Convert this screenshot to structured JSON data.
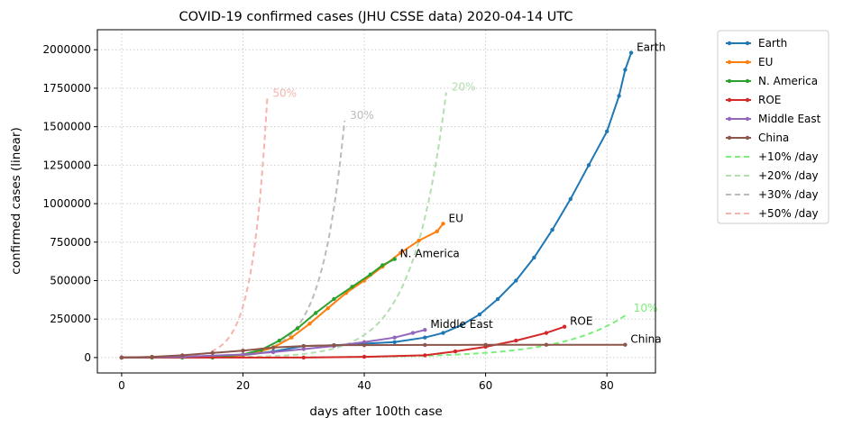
{
  "chart_data": {
    "type": "line",
    "title": "COVID-19 confirmed cases (JHU CSSE data) 2020-04-14 UTC",
    "xlabel": "days after 100th case",
    "ylabel": "confirmed cases (linear)",
    "xlim": [
      -4,
      88
    ],
    "ylim": [
      -100000,
      2130000
    ],
    "x_ticks": [
      0,
      20,
      40,
      60,
      80
    ],
    "y_ticks": [
      0,
      250000,
      500000,
      750000,
      1000000,
      1250000,
      1500000,
      1750000,
      2000000
    ],
    "grid": "dotted",
    "legend_position": "outside-right",
    "series": [
      {
        "name": "Earth",
        "color": "#1f77b4",
        "style": "marker-line",
        "points": [
          [
            0,
            0
          ],
          [
            5,
            1000
          ],
          [
            10,
            2000
          ],
          [
            15,
            5000
          ],
          [
            20,
            15000
          ],
          [
            25,
            40000
          ],
          [
            30,
            75000
          ],
          [
            35,
            80000
          ],
          [
            40,
            90000
          ],
          [
            45,
            100000
          ],
          [
            50,
            130000
          ],
          [
            53,
            160000
          ],
          [
            56,
            210000
          ],
          [
            59,
            280000
          ],
          [
            62,
            380000
          ],
          [
            65,
            500000
          ],
          [
            68,
            650000
          ],
          [
            71,
            830000
          ],
          [
            74,
            1030000
          ],
          [
            77,
            1250000
          ],
          [
            80,
            1470000
          ],
          [
            82,
            1700000
          ],
          [
            83,
            1870000
          ],
          [
            84,
            1980000
          ]
        ],
        "end_label": "Earth"
      },
      {
        "name": "EU",
        "color": "#ff7f0e",
        "style": "marker-line",
        "points": [
          [
            0,
            0
          ],
          [
            5,
            0
          ],
          [
            10,
            0
          ],
          [
            15,
            0
          ],
          [
            20,
            15000
          ],
          [
            22,
            30000
          ],
          [
            25,
            65000
          ],
          [
            28,
            130000
          ],
          [
            31,
            220000
          ],
          [
            34,
            320000
          ],
          [
            37,
            420000
          ],
          [
            40,
            500000
          ],
          [
            43,
            590000
          ],
          [
            46,
            680000
          ],
          [
            49,
            760000
          ],
          [
            52,
            820000
          ],
          [
            53,
            870000
          ]
        ],
        "end_label": "EU"
      },
      {
        "name": "N. America",
        "color": "#2ca02c",
        "style": "marker-line",
        "points": [
          [
            0,
            0
          ],
          [
            5,
            0
          ],
          [
            10,
            0
          ],
          [
            15,
            0
          ],
          [
            20,
            20000
          ],
          [
            23,
            50000
          ],
          [
            26,
            110000
          ],
          [
            29,
            190000
          ],
          [
            32,
            290000
          ],
          [
            35,
            380000
          ],
          [
            38,
            460000
          ],
          [
            41,
            540000
          ],
          [
            43,
            600000
          ],
          [
            45,
            640000
          ]
        ],
        "end_label": "N. America"
      },
      {
        "name": "ROE",
        "color": "#d62728",
        "style": "marker-line",
        "points": [
          [
            0,
            0
          ],
          [
            30,
            0
          ],
          [
            40,
            5000
          ],
          [
            50,
            15000
          ],
          [
            55,
            40000
          ],
          [
            60,
            70000
          ],
          [
            65,
            110000
          ],
          [
            70,
            160000
          ],
          [
            73,
            200000
          ]
        ],
        "end_label": "ROE"
      },
      {
        "name": "Middle East",
        "color": "#9467bd",
        "style": "marker-line",
        "points": [
          [
            0,
            0
          ],
          [
            10,
            5000
          ],
          [
            20,
            20000
          ],
          [
            25,
            35000
          ],
          [
            30,
            55000
          ],
          [
            35,
            75000
          ],
          [
            40,
            100000
          ],
          [
            45,
            130000
          ],
          [
            48,
            160000
          ],
          [
            50,
            180000
          ]
        ],
        "end_label": "Middle East"
      },
      {
        "name": "China",
        "color": "#8c564b",
        "style": "marker-line",
        "points": [
          [
            0,
            0
          ],
          [
            5,
            5000
          ],
          [
            10,
            15000
          ],
          [
            15,
            30000
          ],
          [
            20,
            45000
          ],
          [
            25,
            65000
          ],
          [
            30,
            75000
          ],
          [
            35,
            80000
          ],
          [
            40,
            81000
          ],
          [
            50,
            82000
          ],
          [
            60,
            82500
          ],
          [
            70,
            83000
          ],
          [
            83,
            83000
          ]
        ],
        "end_label": "China"
      },
      {
        "name": "+10% /day",
        "color": "#7af07a",
        "style": "dashed",
        "growth_rate": 0.1,
        "start": 100,
        "x_end": 83.5,
        "end_label": "10%"
      },
      {
        "name": "+20% /day",
        "color": "#b3dfaf",
        "style": "dashed",
        "growth_rate": 0.2,
        "start": 100,
        "x_end": 53.5,
        "end_label": "20%"
      },
      {
        "name": "+30% /day",
        "color": "#bbbbbb",
        "style": "dashed",
        "growth_rate": 0.3,
        "start": 100,
        "x_end": 36.8,
        "end_label": "30%"
      },
      {
        "name": "+50% /day",
        "color": "#f7b3ad",
        "style": "dashed",
        "growth_rate": 0.5,
        "start": 100,
        "x_end": 24,
        "end_label": "50%"
      }
    ]
  }
}
